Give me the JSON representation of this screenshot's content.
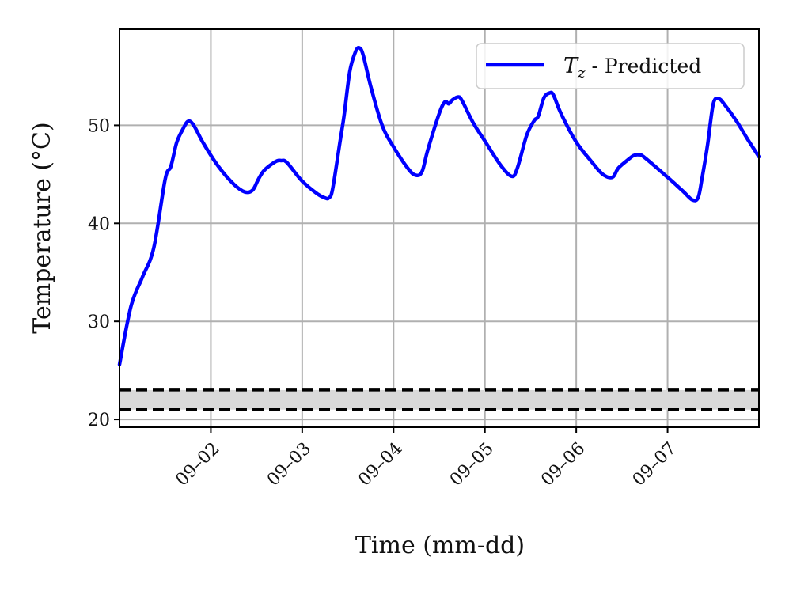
{
  "chart_data": {
    "type": "line",
    "xlabel": "Time (mm-dd)",
    "ylabel": "Temperature (°C)",
    "xlim": [
      "09-01 00:00",
      "09-08 00:00"
    ],
    "ylim": [
      19.2,
      59.8
    ],
    "x_ticks": [
      "09–02",
      "09–03",
      "09–04",
      "09–05",
      "09–06",
      "09–07"
    ],
    "y_ticks": [
      20,
      30,
      40,
      50
    ],
    "grid": true,
    "legend_position": "top-right",
    "series": [
      {
        "name": "T_z - Predicted",
        "color": "#0000ff",
        "points": [
          [
            "09-01 00:00",
            25.6
          ],
          [
            "09-01 03:00",
            31.5
          ],
          [
            "09-01 06:00",
            34.5
          ],
          [
            "09-01 09:00",
            37.5
          ],
          [
            "09-01 12:00",
            44.5
          ],
          [
            "09-01 13:30",
            45.8
          ],
          [
            "09-01 15:00",
            48.2
          ],
          [
            "09-01 16:30",
            49.5
          ],
          [
            "09-01 18:00",
            50.4
          ],
          [
            "09-01 19:30",
            50.0
          ],
          [
            "09-01 22:00",
            48.2
          ],
          [
            "09-02 02:00",
            45.8
          ],
          [
            "09-02 06:00",
            44.0
          ],
          [
            "09-02 09:00",
            43.2
          ],
          [
            "09-02 11:00",
            43.4
          ],
          [
            "09-02 12:30",
            44.5
          ],
          [
            "09-02 14:00",
            45.4
          ],
          [
            "09-02 17:00",
            46.3
          ],
          [
            "09-02 18:30",
            46.4
          ],
          [
            "09-02 20:00",
            46.2
          ],
          [
            "09-03 00:00",
            44.3
          ],
          [
            "09-03 04:00",
            43.0
          ],
          [
            "09-03 06:00",
            42.6
          ],
          [
            "09-03 07:00",
            42.6
          ],
          [
            "09-03 08:00",
            43.5
          ],
          [
            "09-03 10:00",
            48.5
          ],
          [
            "09-03 11:00",
            51.0
          ],
          [
            "09-03 12:30",
            55.5
          ],
          [
            "09-03 14:00",
            57.5
          ],
          [
            "09-03 15:00",
            57.9
          ],
          [
            "09-03 16:00",
            57.2
          ],
          [
            "09-03 18:00",
            54.0
          ],
          [
            "09-03 21:00",
            50.0
          ],
          [
            "09-04 00:00",
            47.8
          ],
          [
            "09-04 04:00",
            45.5
          ],
          [
            "09-04 06:00",
            44.9
          ],
          [
            "09-04 07:30",
            45.3
          ],
          [
            "09-04 09:00",
            47.5
          ],
          [
            "09-04 12:00",
            51.2
          ],
          [
            "09-04 13:30",
            52.4
          ],
          [
            "09-04 14:30",
            52.2
          ],
          [
            "09-04 15:30",
            52.6
          ],
          [
            "09-04 17:00",
            52.9
          ],
          [
            "09-04 18:00",
            52.5
          ],
          [
            "09-04 21:00",
            50.2
          ],
          [
            "09-05 00:00",
            48.4
          ],
          [
            "09-05 04:00",
            46.0
          ],
          [
            "09-05 07:00",
            44.8
          ],
          [
            "09-05 08:30",
            45.6
          ],
          [
            "09-05 11:00",
            49.0
          ],
          [
            "09-05 13:00",
            50.5
          ],
          [
            "09-05 14:00",
            50.9
          ],
          [
            "09-05 15:30",
            52.8
          ],
          [
            "09-05 17:00",
            53.3
          ],
          [
            "09-05 18:00",
            53.1
          ],
          [
            "09-05 20:00",
            51.2
          ],
          [
            "09-06 00:00",
            48.3
          ],
          [
            "09-06 04:00",
            46.3
          ],
          [
            "09-06 07:00",
            45.0
          ],
          [
            "09-06 09:30",
            44.7
          ],
          [
            "09-06 11:00",
            45.6
          ],
          [
            "09-06 13:00",
            46.3
          ],
          [
            "09-06 15:00",
            46.9
          ],
          [
            "09-06 16:30",
            47.0
          ],
          [
            "09-06 18:00",
            46.7
          ],
          [
            "09-07 00:00",
            44.7
          ],
          [
            "09-07 04:00",
            43.3
          ],
          [
            "09-07 06:30",
            42.4
          ],
          [
            "09-07 08:00",
            42.6
          ],
          [
            "09-07 09:00",
            44.5
          ],
          [
            "09-07 10:30",
            48.0
          ],
          [
            "09-07 12:00",
            52.2
          ],
          [
            "09-07 13:30",
            52.7
          ],
          [
            "09-07 15:00",
            52.1
          ],
          [
            "09-07 18:00",
            50.5
          ],
          [
            "09-07 21:00",
            48.6
          ],
          [
            "09-08 00:00",
            46.8
          ]
        ]
      }
    ],
    "band": {
      "lower": 21,
      "upper": 23,
      "line_style": "dashed",
      "line_color": "#000000",
      "fill": "#d9d9d9"
    }
  }
}
